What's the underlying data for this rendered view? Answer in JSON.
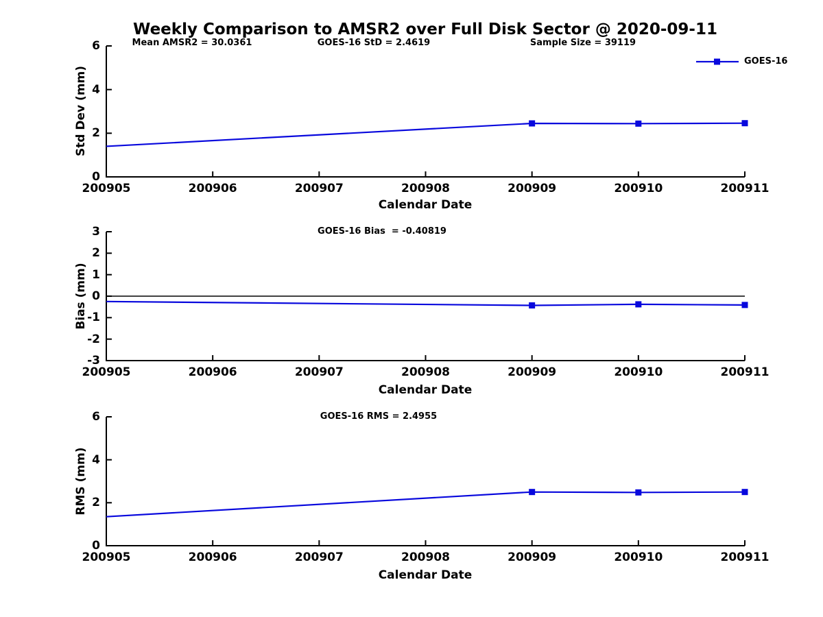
{
  "title": "Weekly Comparison to AMSR2 over Full Disk Sector @ 2020-09-11",
  "colors": {
    "line": "#0808dd",
    "marker": "#0808dd",
    "axis": "#000000",
    "zero_line": "#000000",
    "text": "#000000"
  },
  "legend": {
    "label": "GOES-16",
    "marker": "square"
  },
  "x_axis": {
    "label": "Calendar Date",
    "ticks": [
      "200905",
      "200906",
      "200907",
      "200908",
      "200909",
      "200910",
      "200911"
    ],
    "range": [
      200905,
      200911
    ]
  },
  "chart_data": [
    {
      "type": "line",
      "name": "std-dev",
      "ylabel": "Std Dev (mm)",
      "xlabel": "Calendar Date",
      "ylim": [
        0,
        6
      ],
      "yticks": [
        "0",
        "2",
        "4",
        "6"
      ],
      "ytick_values": [
        0,
        2,
        4,
        6
      ],
      "grid": false,
      "zero_line": false,
      "annotations": [
        {
          "text": "Mean AMSR2 = 30.0361"
        },
        {
          "text": "GOES-16 StD = 2.4619"
        },
        {
          "text": "Sample Size = 39119"
        }
      ],
      "series": [
        {
          "name": "GOES-16",
          "x": [
            200905,
            200909,
            200910,
            200911
          ],
          "y": [
            1.4,
            2.45,
            2.44,
            2.46
          ],
          "marker_x": [
            200909,
            200910,
            200911
          ],
          "marker_y": [
            2.45,
            2.44,
            2.46
          ]
        }
      ]
    },
    {
      "type": "line",
      "name": "bias",
      "ylabel": "Bias (mm)",
      "xlabel": "Calendar Date",
      "ylim": [
        -3,
        3
      ],
      "yticks": [
        "-3",
        "-2",
        "-1",
        "0",
        "1",
        "2",
        "3"
      ],
      "ytick_values": [
        -3,
        -2,
        -1,
        0,
        1,
        2,
        3
      ],
      "grid": false,
      "zero_line": true,
      "annotations": [
        {
          "text": "GOES-16 Bias  = -0.40819"
        }
      ],
      "series": [
        {
          "name": "GOES-16",
          "x": [
            200905,
            200909,
            200910,
            200911
          ],
          "y": [
            -0.25,
            -0.43,
            -0.38,
            -0.41
          ],
          "marker_x": [
            200909,
            200910,
            200911
          ],
          "marker_y": [
            -0.43,
            -0.38,
            -0.41
          ]
        }
      ]
    },
    {
      "type": "line",
      "name": "rms",
      "ylabel": "RMS (mm)",
      "xlabel": "Calendar Date",
      "ylim": [
        0,
        6
      ],
      "yticks": [
        "0",
        "2",
        "4",
        "6"
      ],
      "ytick_values": [
        0,
        2,
        4,
        6
      ],
      "grid": false,
      "zero_line": false,
      "annotations": [
        {
          "text": "GOES-16 RMS = 2.4955"
        }
      ],
      "series": [
        {
          "name": "GOES-16",
          "x": [
            200905,
            200909,
            200910,
            200911
          ],
          "y": [
            1.35,
            2.5,
            2.48,
            2.5
          ],
          "marker_x": [
            200909,
            200910,
            200911
          ],
          "marker_y": [
            2.5,
            2.48,
            2.5
          ]
        }
      ]
    }
  ]
}
